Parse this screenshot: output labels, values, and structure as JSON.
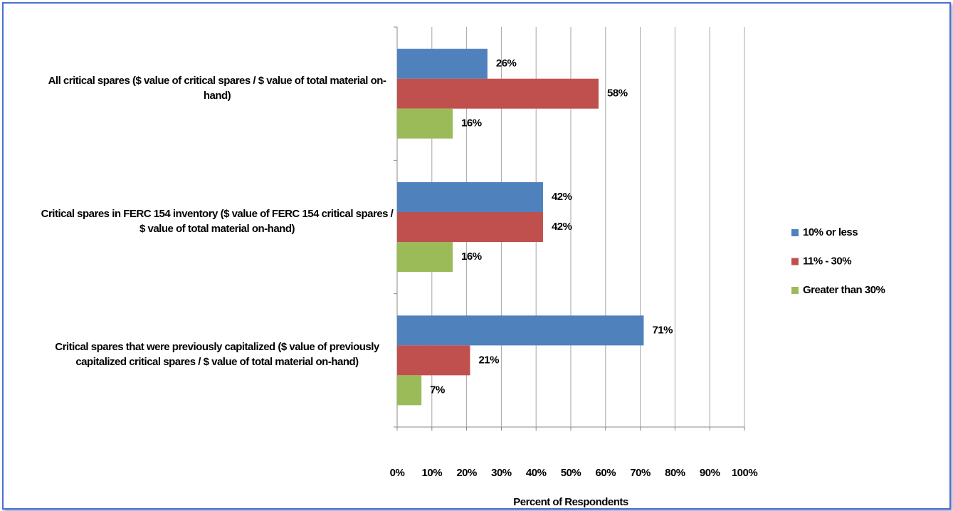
{
  "chart_data": {
    "type": "hbar",
    "categories": [
      "All critical spares ($ value of critical spares / $ value of total material on-hand)",
      "Critical spares in FERC 154 inventory ($ value of FERC 154 critical spares / $ value of total material on-hand)",
      "Critical spares that were previously capitalized ($ value of previously capitalized critical spares / $ value of total material on-hand)"
    ],
    "series": [
      {
        "name": "10% or less",
        "color": "#4f81bd",
        "values": [
          26,
          42,
          71
        ],
        "value_labels": [
          "26%",
          "42%",
          "71%"
        ]
      },
      {
        "name": "11% - 30%",
        "color": "#c0504d",
        "values": [
          58,
          42,
          21
        ],
        "value_labels": [
          "58%",
          "42%",
          "21%"
        ]
      },
      {
        "name": "Greater than 30%",
        "color": "#9bbb59",
        "values": [
          16,
          16,
          7
        ],
        "value_labels": [
          "16%",
          "16%",
          "7%"
        ]
      }
    ],
    "xlabel": "Percent of Respondents",
    "xlim": [
      0,
      100
    ],
    "xticks": [
      {
        "value": 0,
        "label": "0%"
      },
      {
        "value": 10,
        "label": "10%"
      },
      {
        "value": 20,
        "label": "20%"
      },
      {
        "value": 30,
        "label": "30%"
      },
      {
        "value": 40,
        "label": "40%"
      },
      {
        "value": 50,
        "label": "50%"
      },
      {
        "value": 60,
        "label": "60%"
      },
      {
        "value": 70,
        "label": "70%"
      },
      {
        "value": 80,
        "label": "80%"
      },
      {
        "value": 90,
        "label": "90%"
      },
      {
        "value": 100,
        "label": "100%"
      }
    ],
    "grid": true,
    "legend": "right"
  }
}
